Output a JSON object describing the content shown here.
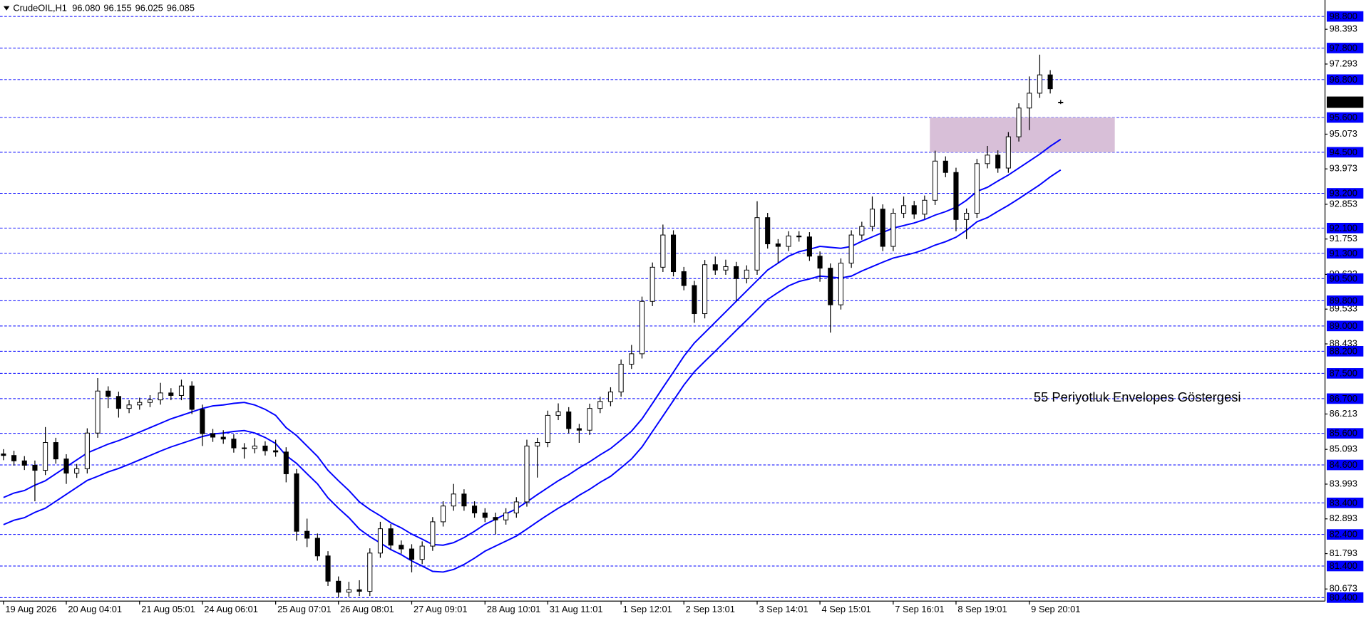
{
  "chart_data": {
    "type": "candlestick",
    "title": "CrudeOIL,H1",
    "header_ohlc": [
      "96.080",
      "96.155",
      "96.025",
      "96.085"
    ],
    "categories": [
      "19 Aug 2026",
      null,
      null,
      null,
      null,
      null,
      "20 Aug 04:01",
      null,
      null,
      null,
      null,
      null,
      null,
      "21 Aug 05:01",
      null,
      null,
      null,
      null,
      null,
      "24 Aug 06:01",
      null,
      null,
      null,
      null,
      null,
      null,
      "25 Aug 07:01",
      null,
      null,
      null,
      null,
      null,
      "26 Aug 08:01",
      null,
      null,
      null,
      null,
      null,
      null,
      "27 Aug 09:01",
      null,
      null,
      null,
      null,
      null,
      null,
      "28 Aug 10:01",
      null,
      null,
      null,
      null,
      null,
      "31 Aug 11:01",
      null,
      null,
      null,
      null,
      null,
      null,
      "1 Sep 12:01",
      null,
      null,
      null,
      null,
      null,
      "2 Sep 13:01",
      null,
      null,
      null,
      null,
      null,
      null,
      "3 Sep 14:01",
      null,
      null,
      null,
      null,
      null,
      "4 Sep 15:01",
      null,
      null,
      null,
      null,
      null,
      null,
      "7 Sep 16:01",
      null,
      null,
      null,
      null,
      null,
      "8 Sep 19:01",
      null,
      null,
      null,
      null,
      null,
      null,
      "9 Sep 20:01",
      null,
      null,
      null
    ],
    "open": [
      84.95,
      84.9,
      84.73,
      84.59,
      84.43,
      85.31,
      84.79,
      84.34,
      84.48,
      85.61,
      86.94,
      86.77,
      86.39,
      86.5,
      86.58,
      86.66,
      86.88,
      86.8,
      87.1,
      86.36,
      85.59,
      85.48,
      85.42,
      85.14,
      85.12,
      85.2,
      85.05,
      85.01,
      84.32,
      82.5,
      82.28,
      81.72,
      80.92,
      80.57,
      80.65,
      80.6,
      81.81,
      82.58,
      82.06,
      81.94,
      81.61,
      82.03,
      82.8,
      83.3,
      83.68,
      83.3,
      83.08,
      82.94,
      82.86,
      83.08,
      83.43,
      85.2,
      85.31,
      86.17,
      86.28,
      85.75,
      85.7,
      86.39,
      86.61,
      86.91,
      87.79,
      88.12,
      89.78,
      90.86,
      91.88,
      90.72,
      90.28,
      89.39,
      90.94,
      90.77,
      90.88,
      90.5,
      90.77,
      92.43,
      91.6,
      91.52,
      91.85,
      91.82,
      91.21,
      90.83,
      89.67,
      90.99,
      91.88,
      92.15,
      92.7,
      91.52,
      92.57,
      92.81,
      92.54,
      92.98,
      94.22,
      93.86,
      92.37,
      92.57,
      94.14,
      94.41,
      94.0,
      94.99,
      95.9,
      96.37,
      96.95,
      96.08
    ],
    "high": [
      85.1,
      85.05,
      84.88,
      84.74,
      85.8,
      85.46,
      84.94,
      84.63,
      85.76,
      87.35,
      87.09,
      86.92,
      86.65,
      86.73,
      86.81,
      87.2,
      87.03,
      87.3,
      87.25,
      86.51,
      85.74,
      85.7,
      85.57,
      85.29,
      85.45,
      85.35,
      85.4,
      85.16,
      84.47,
      82.9,
      82.43,
      81.87,
      81.07,
      80.9,
      80.95,
      81.96,
      82.8,
      82.73,
      82.21,
      82.09,
      82.18,
      82.95,
      83.45,
      84.0,
      83.83,
      83.45,
      83.23,
      83.09,
      83.23,
      83.58,
      85.4,
      85.46,
      86.32,
      86.55,
      86.43,
      85.9,
      86.54,
      86.76,
      87.06,
      87.94,
      88.4,
      89.93,
      91.01,
      92.21,
      92.03,
      90.87,
      90.43,
      91.09,
      91.2,
      91.1,
      91.03,
      90.92,
      92.95,
      92.58,
      91.75,
      92.0,
      92.0,
      91.97,
      91.36,
      90.98,
      91.14,
      92.03,
      92.3,
      93.1,
      92.85,
      92.72,
      93.1,
      92.96,
      93.13,
      94.55,
      94.37,
      94.01,
      92.72,
      94.29,
      94.7,
      94.56,
      95.14,
      96.05,
      96.9,
      97.59,
      97.1,
      96.155
    ],
    "low": [
      84.75,
      84.58,
      84.44,
      83.45,
      84.28,
      84.64,
      84.0,
      84.19,
      84.33,
      85.46,
      86.4,
      86.1,
      86.24,
      86.35,
      86.43,
      86.51,
      86.65,
      86.65,
      86.21,
      85.2,
      85.33,
      85.27,
      84.99,
      84.8,
      84.97,
      84.9,
      84.86,
      84.05,
      82.2,
      82.0,
      81.57,
      80.77,
      80.4,
      80.42,
      80.45,
      80.45,
      81.66,
      81.91,
      81.79,
      81.2,
      81.46,
      81.88,
      82.65,
      83.15,
      83.15,
      82.93,
      82.79,
      82.4,
      82.71,
      82.93,
      83.28,
      84.2,
      85.16,
      86.02,
      85.6,
      85.3,
      85.55,
      86.24,
      86.46,
      86.76,
      87.64,
      87.97,
      89.63,
      90.71,
      90.57,
      90.13,
      89.1,
      89.24,
      90.62,
      90.62,
      89.8,
      90.35,
      90.62,
      91.45,
      91.0,
      91.37,
      91.67,
      91.06,
      90.4,
      88.79,
      89.52,
      90.84,
      91.73,
      92.0,
      91.37,
      91.37,
      92.42,
      92.39,
      92.39,
      92.83,
      93.71,
      92.0,
      91.75,
      92.42,
      93.99,
      93.85,
      93.85,
      94.84,
      95.2,
      96.22,
      96.36,
      96.025
    ],
    "close": [
      84.9,
      84.73,
      84.59,
      84.43,
      85.31,
      84.79,
      84.34,
      84.48,
      85.61,
      86.94,
      86.77,
      86.39,
      86.5,
      86.58,
      86.66,
      86.88,
      86.8,
      87.1,
      86.36,
      85.59,
      85.48,
      85.42,
      85.14,
      85.12,
      85.2,
      85.05,
      85.01,
      84.32,
      82.5,
      82.28,
      81.72,
      80.92,
      80.57,
      80.65,
      80.6,
      81.81,
      82.58,
      82.06,
      81.94,
      81.61,
      82.03,
      82.8,
      83.3,
      83.68,
      83.3,
      83.08,
      82.94,
      82.86,
      83.08,
      83.43,
      85.2,
      85.31,
      86.17,
      86.28,
      85.75,
      85.7,
      86.39,
      86.61,
      86.91,
      87.79,
      88.12,
      89.78,
      90.86,
      91.88,
      90.72,
      90.28,
      89.39,
      90.94,
      90.77,
      90.88,
      90.5,
      90.77,
      92.43,
      91.6,
      91.52,
      91.85,
      91.82,
      91.21,
      90.83,
      89.67,
      90.99,
      91.88,
      92.15,
      92.7,
      91.52,
      92.57,
      92.81,
      92.54,
      92.98,
      94.22,
      93.86,
      92.37,
      92.57,
      94.14,
      94.41,
      94.0,
      94.99,
      95.9,
      96.37,
      96.95,
      96.51,
      96.085
    ],
    "up_color": "#ffffff",
    "down_color": "#000000",
    "wick_color": "#000000",
    "envelopes": [
      {
        "color": "#0000ff",
        "values": [
          83.57,
          83.71,
          83.79,
          83.96,
          84.1,
          84.32,
          84.54,
          84.76,
          84.98,
          85.12,
          85.26,
          85.37,
          85.5,
          85.64,
          85.78,
          85.92,
          86.06,
          86.17,
          86.28,
          86.39,
          86.47,
          86.5,
          86.55,
          86.58,
          86.5,
          86.36,
          86.17,
          85.78,
          85.53,
          85.2,
          84.87,
          84.43,
          84.1,
          83.79,
          83.43,
          83.19,
          82.99,
          82.77,
          82.61,
          82.41,
          82.25,
          82.08,
          82.06,
          82.14,
          82.3,
          82.5,
          82.72,
          82.88,
          83.05,
          83.21,
          83.43,
          83.66,
          83.88,
          84.1,
          84.29,
          84.51,
          84.7,
          84.92,
          85.12,
          85.39,
          85.67,
          86.06,
          86.55,
          87.05,
          87.54,
          88.04,
          88.46,
          88.79,
          89.12,
          89.45,
          89.78,
          90.11,
          90.44,
          90.77,
          90.99,
          91.21,
          91.35,
          91.43,
          91.52,
          91.49,
          91.46,
          91.52,
          91.68,
          91.82,
          91.96,
          92.1,
          92.18,
          92.26,
          92.37,
          92.51,
          92.62,
          92.76,
          92.98,
          93.26,
          93.39,
          93.59,
          93.78,
          94.0,
          94.22,
          94.44,
          94.69,
          94.91
        ]
      },
      {
        "color": "#0000ff",
        "values": [
          82.71,
          82.85,
          82.93,
          83.1,
          83.23,
          83.45,
          83.67,
          83.89,
          84.11,
          84.24,
          84.38,
          84.49,
          84.62,
          84.76,
          84.9,
          85.04,
          85.17,
          85.28,
          85.39,
          85.5,
          85.58,
          85.61,
          85.66,
          85.69,
          85.61,
          85.47,
          85.28,
          84.9,
          84.65,
          84.32,
          84.0,
          83.56,
          83.23,
          82.93,
          82.57,
          82.33,
          82.13,
          81.92,
          81.76,
          81.56,
          81.4,
          81.23,
          81.21,
          81.29,
          81.45,
          81.65,
          81.87,
          82.03,
          82.19,
          82.35,
          82.57,
          82.8,
          83.02,
          83.23,
          83.42,
          83.64,
          83.83,
          84.05,
          84.24,
          84.51,
          84.79,
          85.17,
          85.66,
          86.15,
          86.64,
          87.13,
          87.55,
          87.88,
          88.2,
          88.53,
          88.86,
          89.18,
          89.51,
          89.84,
          90.06,
          90.27,
          90.41,
          90.49,
          90.58,
          90.55,
          90.52,
          90.58,
          90.74,
          90.88,
          91.02,
          91.15,
          91.23,
          91.31,
          91.42,
          91.56,
          91.67,
          91.81,
          92.03,
          92.3,
          92.43,
          92.63,
          92.82,
          93.03,
          93.25,
          93.47,
          93.72,
          93.94
        ]
      }
    ],
    "ylim": [
      80.29,
      99.32
    ],
    "yticks": [
      98.393,
      97.293,
      95.073,
      93.973,
      92.853,
      91.753,
      90.633,
      89.533,
      88.433,
      86.213,
      85.093,
      83.993,
      82.893,
      81.793,
      80.673
    ],
    "levels": [
      {
        "value": 98.8,
        "label": "98.800"
      },
      {
        "value": 97.8,
        "label": "97.800"
      },
      {
        "value": 96.8,
        "label": "96.800"
      },
      {
        "value": 95.6,
        "label": "95.600"
      },
      {
        "value": 94.5,
        "label": "94.500"
      },
      {
        "value": 93.2,
        "label": "93.200"
      },
      {
        "value": 92.1,
        "label": "92.100"
      },
      {
        "value": 91.3,
        "label": "91.300"
      },
      {
        "value": 90.5,
        "label": "90.500"
      },
      {
        "value": 89.8,
        "label": "89.800"
      },
      {
        "value": 89.0,
        "label": "89.000"
      },
      {
        "value": 88.2,
        "label": "88.200"
      },
      {
        "value": 87.5,
        "label": "87.500"
      },
      {
        "value": 86.7,
        "label": "86.700"
      },
      {
        "value": 85.6,
        "label": "85.600"
      },
      {
        "value": 84.6,
        "label": "84.600"
      },
      {
        "value": 83.4,
        "label": "83.400"
      },
      {
        "value": 82.4,
        "label": "82.400"
      },
      {
        "value": 81.4,
        "label": "81.400"
      },
      {
        "value": 80.4,
        "label": "80.400"
      }
    ],
    "level_color": "#0000ff",
    "current_price": 96.085,
    "zone": {
      "from": 94.5,
      "to": 95.6,
      "color": "#d8bfd8"
    },
    "annotation": "55 Periyotluk Envelopes Göstergesi",
    "annotation_color": "#1a1aff"
  }
}
